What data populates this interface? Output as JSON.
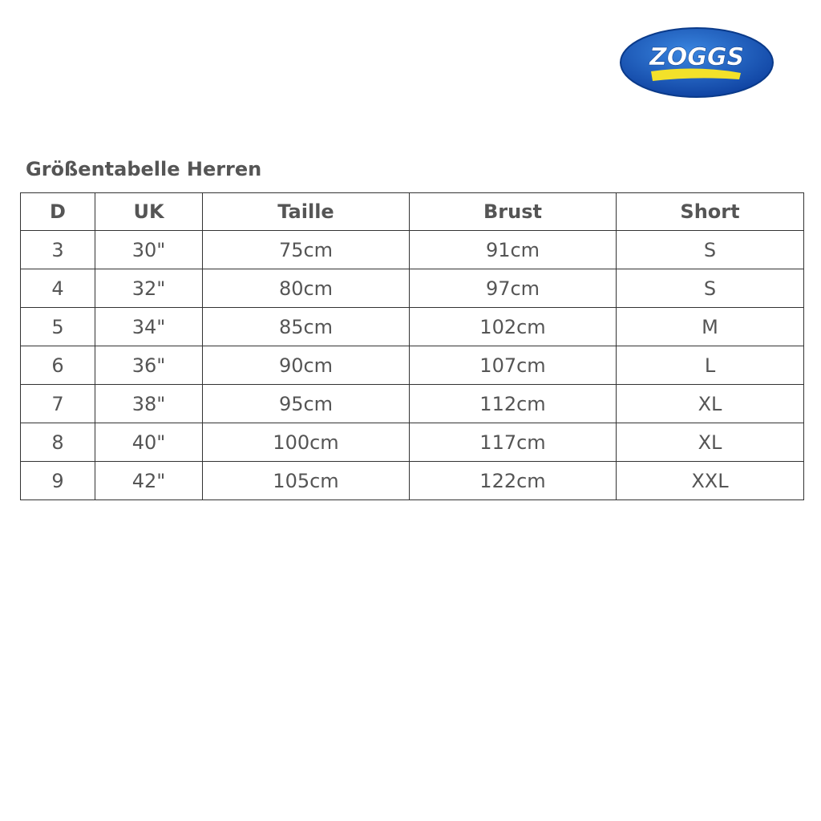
{
  "logo": {
    "text": "ZOGGS",
    "colors": {
      "blue": "#1a5cc0",
      "yellow": "#f3e12a",
      "white": "#ffffff"
    }
  },
  "title": "Größentabelle Herren",
  "table": {
    "headers": [
      "D",
      "UK",
      "Taille",
      "Brust",
      "Short"
    ],
    "rows": [
      [
        "3",
        "30\"",
        "75cm",
        "91cm",
        "S"
      ],
      [
        "4",
        "32\"",
        "80cm",
        "97cm",
        "S"
      ],
      [
        "5",
        "34\"",
        "85cm",
        "102cm",
        "M"
      ],
      [
        "6",
        "36\"",
        "90cm",
        "107cm",
        "L"
      ],
      [
        "7",
        "38\"",
        "95cm",
        "112cm",
        "XL"
      ],
      [
        "8",
        "40\"",
        "100cm",
        "117cm",
        "XL"
      ],
      [
        "9",
        "42\"",
        "105cm",
        "122cm",
        "XXL"
      ]
    ]
  }
}
